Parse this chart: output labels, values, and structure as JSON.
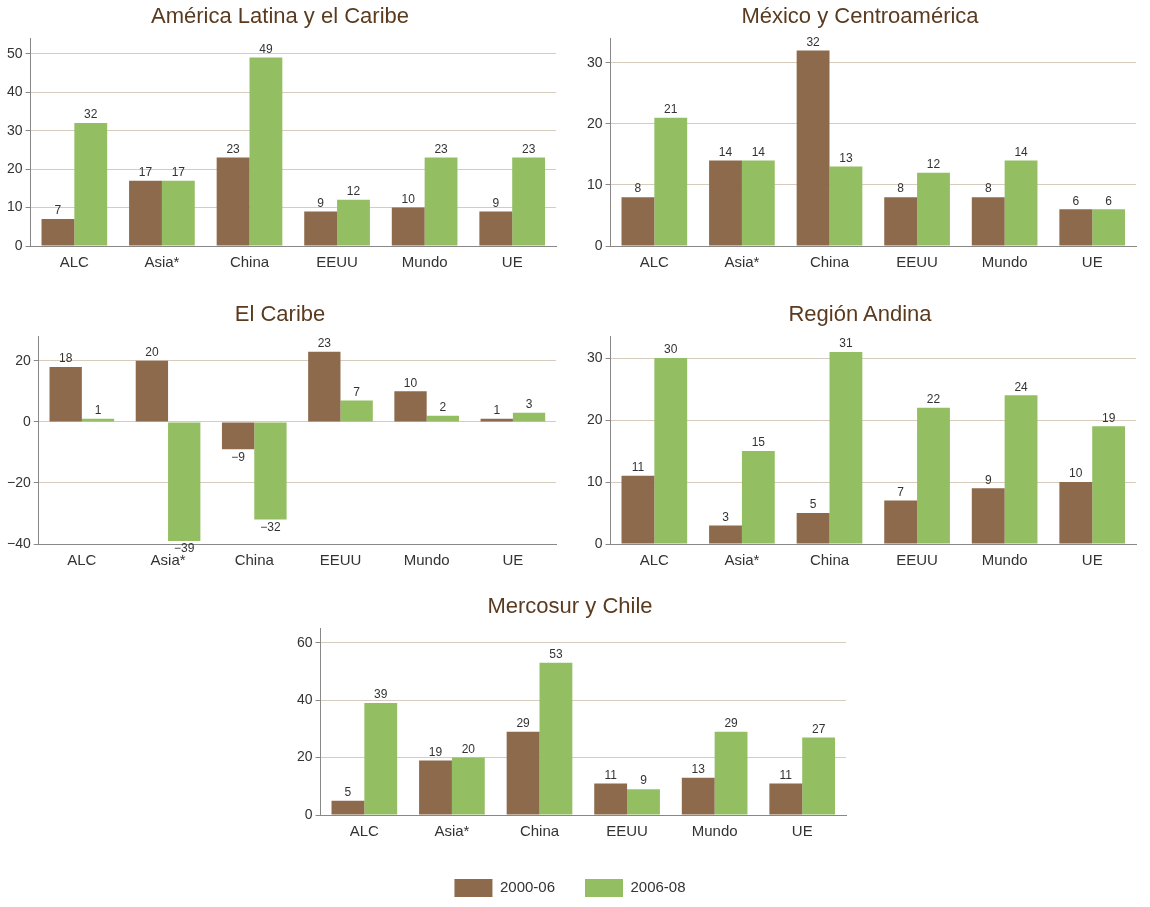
{
  "chart_data": [
    {
      "type": "bar",
      "title": "América Latina y el Caribe",
      "categories": [
        "ALC",
        "Asia*",
        "China",
        "EEUU",
        "Mundo",
        "UE"
      ],
      "series": [
        {
          "color": "#8c6a4b",
          "values": [
            7,
            17,
            23,
            9,
            10,
            9
          ]
        },
        {
          "color": "#93bf62",
          "values": [
            32,
            17,
            49,
            12,
            23,
            23
          ]
        }
      ],
      "ylim": [
        0,
        54
      ],
      "yticks": [
        0,
        10,
        20,
        30,
        40,
        50
      ],
      "grid": "y",
      "data_labels": true
    },
    {
      "type": "bar",
      "title": "México y Centroamérica",
      "categories": [
        "ALC",
        "Asia*",
        "China",
        "EEUU",
        "Mundo",
        "UE"
      ],
      "series": [
        {
          "color": "#8c6a4b",
          "values": [
            8,
            14,
            32,
            8,
            8,
            6
          ]
        },
        {
          "color": "#93bf62",
          "values": [
            21,
            14,
            13,
            12,
            14,
            6
          ]
        }
      ],
      "ylim": [
        0,
        34
      ],
      "yticks": [
        0,
        10,
        20,
        30
      ],
      "grid": "y",
      "data_labels": true
    },
    {
      "type": "bar",
      "title": "El Caribe",
      "categories": [
        "ALC",
        "Asia*",
        "China",
        "EEUU",
        "Mundo",
        "UE"
      ],
      "series": [
        {
          "color": "#8c6a4b",
          "values": [
            18,
            20,
            -9,
            23,
            10,
            1
          ]
        },
        {
          "color": "#93bf62",
          "values": [
            1,
            -39,
            -32,
            7,
            2,
            3
          ]
        }
      ],
      "ylim": [
        -40,
        28
      ],
      "yticks": [
        -40,
        -20,
        0,
        20
      ],
      "grid": "y",
      "data_labels": true
    },
    {
      "type": "bar",
      "title": "Región Andina",
      "categories": [
        "ALC",
        "Asia*",
        "China",
        "EEUU",
        "Mundo",
        "UE"
      ],
      "series": [
        {
          "color": "#8c6a4b",
          "values": [
            11,
            3,
            5,
            7,
            9,
            10
          ]
        },
        {
          "color": "#93bf62",
          "values": [
            30,
            15,
            31,
            22,
            24,
            19
          ]
        }
      ],
      "ylim": [
        0,
        33.5
      ],
      "yticks": [
        0,
        10,
        20,
        30
      ],
      "grid": "y",
      "data_labels": true
    },
    {
      "type": "bar",
      "title": "Mercosur y Chile",
      "categories": [
        "ALC",
        "Asia*",
        "China",
        "EEUU",
        "Mundo",
        "UE"
      ],
      "series": [
        {
          "name": "2000-06",
          "color": "#8c6a4b",
          "values": [
            5,
            19,
            29,
            11,
            13,
            11
          ]
        },
        {
          "name": "2006-08",
          "color": "#93bf62",
          "values": [
            39,
            20,
            53,
            9,
            29,
            27
          ]
        }
      ],
      "ylim": [
        0,
        65
      ],
      "yticks": [
        0,
        20,
        40,
        60
      ],
      "grid": "y",
      "data_labels": true,
      "legend": "bottom"
    }
  ]
}
